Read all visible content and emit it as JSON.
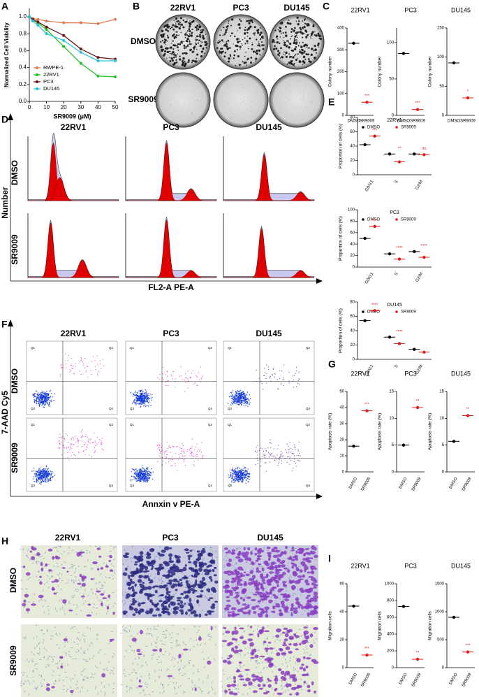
{
  "panel_labels": [
    "A",
    "B",
    "C",
    "D",
    "E",
    "F",
    "G",
    "H",
    "I"
  ],
  "colony_plates": {
    "columns": [
      "22RV1",
      "PC3",
      "DU145"
    ],
    "rows": [
      "DMSO",
      "SR9009"
    ]
  },
  "cell_cycle": {
    "columns": [
      "22RV1",
      "PC3",
      "DU145"
    ],
    "rows": [
      "DMSO",
      "SR9009"
    ],
    "ylabel": "Number",
    "xlabel": "FL2-A PE-A"
  },
  "flow_cytometry": {
    "columns": [
      "22RV1",
      "PC3",
      "DU145"
    ],
    "rows": [
      "DMSO",
      "SR9009"
    ],
    "ylabel": "7-AAD Cy5",
    "xlabel": "Annxin v PE-A",
    "quadrants": [
      "Q1",
      "Q2",
      "Q3",
      "Q4"
    ]
  },
  "transwell": {
    "columns": [
      "22RV1",
      "PC3",
      "DU145"
    ],
    "rows": [
      "DMSO",
      "SR9009"
    ]
  },
  "chart_data": [
    {
      "type": "line",
      "xlabel": "SR9009 (μM)",
      "ylabel": "Normalized Cell Viability",
      "x": [
        0,
        2,
        5,
        10,
        20,
        30,
        40,
        50
      ],
      "xlim": [
        0,
        50
      ],
      "xticks": [
        0,
        10,
        20,
        30,
        40,
        50
      ],
      "ylim": [
        0,
        1.1
      ],
      "yticks": [
        {
          "value": 0,
          "label": "0.0"
        },
        {
          "value": 0.2,
          "label": "0.2"
        },
        {
          "value": 0.4,
          "label": "0.4"
        },
        {
          "value": 0.6,
          "label": "0.6"
        },
        {
          "value": 0.8,
          "label": "0.8"
        },
        {
          "value": 1,
          "label": "1.0"
        }
      ],
      "legend": "lower left",
      "series": [
        {
          "name": "RWPE-1",
          "color": "#e07b54",
          "values": [
            1.0,
            0.98,
            0.97,
            0.95,
            0.93,
            0.93,
            0.92,
            0.97
          ]
        },
        {
          "name": "22RV1",
          "color": "#22c322",
          "values": [
            1.0,
            0.96,
            0.93,
            0.85,
            0.65,
            0.45,
            0.3,
            0.29
          ]
        },
        {
          "name": "PC3",
          "color": "#6b1a1a",
          "values": [
            1.0,
            0.97,
            0.94,
            0.88,
            0.78,
            0.62,
            0.52,
            0.5
          ]
        },
        {
          "name": "DU145",
          "color": "#26c6da",
          "values": [
            1.0,
            0.95,
            0.9,
            0.8,
            0.72,
            0.58,
            0.48,
            0.48
          ]
        }
      ]
    },
    {
      "type": "dot",
      "title": "22RV1",
      "ylabel": "Colony number",
      "categories": [
        "DMSO",
        "SR9009"
      ],
      "values": [
        330,
        60
      ],
      "colors": [
        "#000000",
        "#e41a1c"
      ],
      "ylim": [
        0,
        400
      ],
      "yticks": [
        0,
        100,
        200,
        300,
        400
      ],
      "annotation": "***"
    },
    {
      "type": "dot",
      "title": "PC3",
      "ylabel": "Colony number",
      "categories": [
        "DMSO",
        "SR9009"
      ],
      "values": [
        85,
        8
      ],
      "colors": [
        "#000000",
        "#e41a1c"
      ],
      "ylim": [
        0,
        120
      ],
      "yticks": [
        0,
        50,
        100
      ],
      "annotation": "***"
    },
    {
      "type": "dot",
      "title": "DU145",
      "ylabel": "Colony number",
      "categories": [
        "DMSO",
        "SR9009"
      ],
      "values": [
        90,
        30
      ],
      "colors": [
        "#000000",
        "#e41a1c"
      ],
      "ylim": [
        0,
        150
      ],
      "yticks": [
        0,
        50,
        100,
        150
      ],
      "annotation": "*"
    },
    {
      "type": "grouped",
      "title": "22RV1",
      "ylabel": "Proportion of cells (%)",
      "categories": [
        "G0/G1",
        "S",
        "G2/M"
      ],
      "ylim": [
        0,
        80
      ],
      "yticks": [
        0,
        20,
        40,
        60,
        80
      ],
      "series": [
        {
          "name": "DMSO",
          "color": "#000000",
          "values": [
            42,
            29,
            29
          ]
        },
        {
          "name": "SR9009",
          "color": "#e41a1c",
          "values": [
            54,
            18,
            28
          ]
        }
      ],
      "annotations": [
        "***",
        "**",
        "ns"
      ]
    },
    {
      "type": "grouped",
      "title": "PC3",
      "ylabel": "Proportion of cells (%)",
      "categories": [
        "G0/G1",
        "S",
        "G2/M"
      ],
      "ylim": [
        0,
        100
      ],
      "yticks": [
        0,
        20,
        40,
        60,
        80,
        100
      ],
      "series": [
        {
          "name": "DMSO",
          "color": "#000000",
          "values": [
            50,
            23,
            27
          ]
        },
        {
          "name": "SR9009",
          "color": "#e41a1c",
          "values": [
            71,
            14,
            17
          ]
        }
      ],
      "annotations": [
        "****",
        "****",
        "****"
      ]
    },
    {
      "type": "grouped",
      "title": "DU145",
      "ylabel": "Proportion of cells (%)",
      "categories": [
        "G0/G1",
        "S",
        "G2/M"
      ],
      "ylim": [
        0,
        80
      ],
      "yticks": [
        0,
        20,
        40,
        60,
        80
      ],
      "series": [
        {
          "name": "DMSO",
          "color": "#000000",
          "values": [
            54,
            31,
            14
          ]
        },
        {
          "name": "SR9009",
          "color": "#e41a1c",
          "values": [
            68,
            22,
            10
          ]
        }
      ],
      "annotations": [
        "****",
        "****"
      ]
    },
    {
      "type": "dot",
      "title": "22RV1",
      "ylabel": "Apoptosis rate (%)",
      "categories": [
        "DMSO",
        "SR9009"
      ],
      "values": [
        16,
        38
      ],
      "colors": [
        "#000000",
        "#e41a1c"
      ],
      "ylim": [
        0,
        50
      ],
      "yticks": [
        0,
        10,
        20,
        30,
        40,
        50
      ],
      "annotation": "***"
    },
    {
      "type": "dot",
      "title": "PC3",
      "ylabel": "Apoptosis rate (%)",
      "categories": [
        "DMSO",
        "SR9009"
      ],
      "values": [
        5,
        12
      ],
      "colors": [
        "#000000",
        "#e41a1c"
      ],
      "ylim": [
        0,
        15
      ],
      "yticks": [
        0,
        5,
        10,
        15
      ],
      "annotation": "**"
    },
    {
      "type": "dot",
      "title": "DU145",
      "ylabel": "Apoptosis rate (%)",
      "categories": [
        "DMSO",
        "SR9009"
      ],
      "values": [
        5.7,
        10.5
      ],
      "colors": [
        "#000000",
        "#e41a1c"
      ],
      "ylim": [
        0,
        15
      ],
      "yticks": [
        0,
        5,
        10,
        15
      ],
      "annotation": "**"
    },
    {
      "type": "dot",
      "title": "22RV1",
      "ylabel": "Migration cells",
      "categories": [
        "DMSO",
        "SR9009"
      ],
      "values": [
        44,
        9
      ],
      "colors": [
        "#000000",
        "#e41a1c"
      ],
      "ylim": [
        0,
        60
      ],
      "yticks": [
        0,
        20,
        40,
        60
      ],
      "annotation": "***"
    },
    {
      "type": "dot",
      "title": "PC3",
      "ylabel": "Migration cells",
      "categories": [
        "DMSO",
        "SR9009"
      ],
      "values": [
        730,
        100
      ],
      "colors": [
        "#000000",
        "#e41a1c"
      ],
      "ylim": [
        0,
        1000
      ],
      "yticks": [
        0,
        200,
        400,
        600,
        800,
        1000
      ],
      "annotation": "**"
    },
    {
      "type": "dot",
      "title": "DU145",
      "ylabel": "Migration cells",
      "categories": [
        "DMSO",
        "SR9009"
      ],
      "values": [
        900,
        280
      ],
      "colors": [
        "#000000",
        "#e41a1c"
      ],
      "ylim": [
        0,
        1500
      ],
      "yticks": [
        0,
        500,
        1000,
        1500
      ],
      "annotation": "***"
    }
  ]
}
